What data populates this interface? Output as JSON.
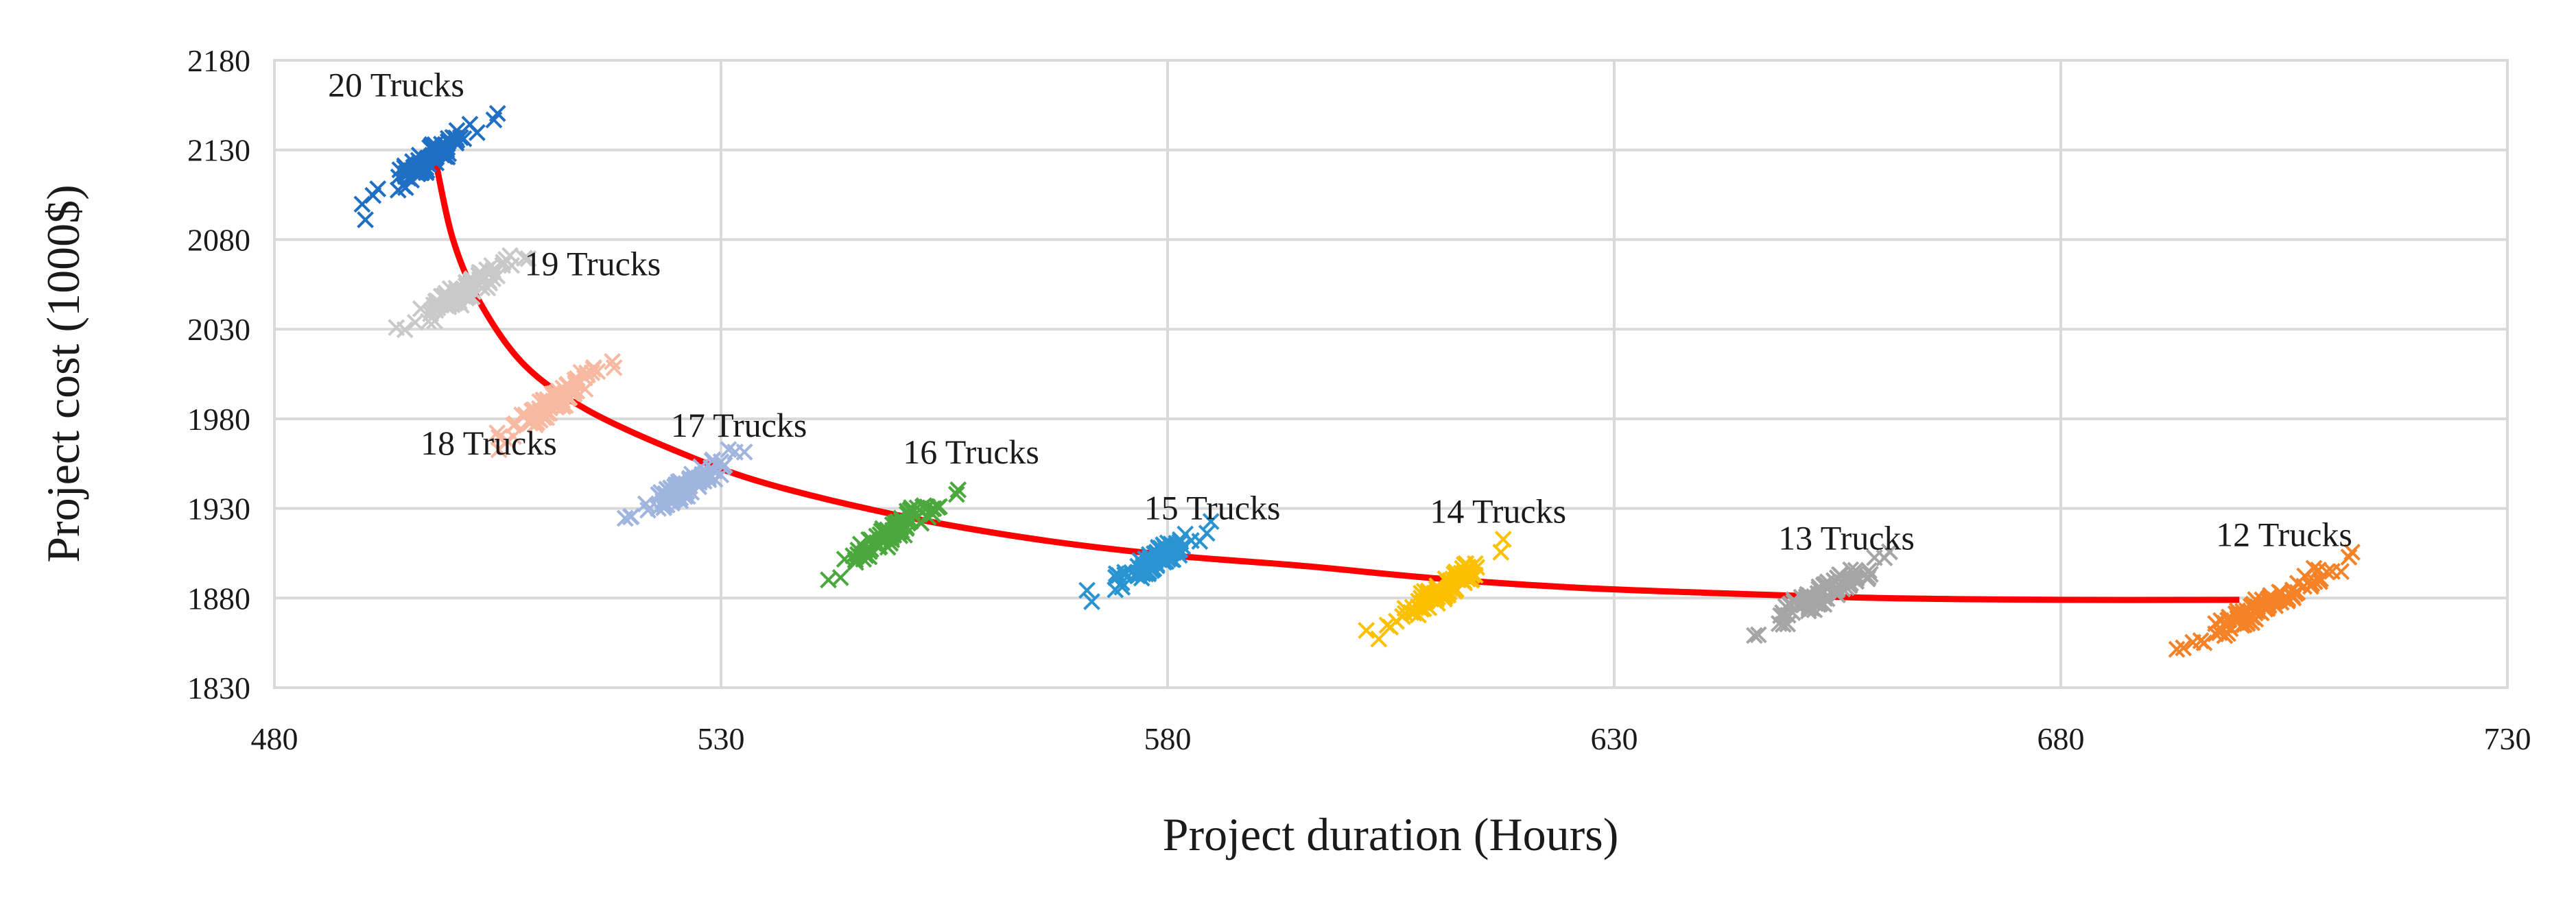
{
  "chart_data": {
    "type": "scatter",
    "title": "",
    "xlabel": "Project duration (Hours)",
    "ylabel": "Project cost (1000$)",
    "xlim": [
      480,
      730
    ],
    "ylim": [
      1830,
      2180
    ],
    "xticks": [
      480,
      530,
      580,
      630,
      680,
      730
    ],
    "yticks": [
      1830,
      1880,
      1930,
      1980,
      2030,
      2080,
      2130,
      2180
    ],
    "grid": true,
    "legend": "none",
    "marker": "x",
    "series": [
      {
        "name": "20 Trucks",
        "color": "#1f6fc5",
        "center": [
          497.5,
          2122
        ],
        "x_range": [
          489.5,
          504.5
        ],
        "y_range": [
          2095,
          2152
        ]
      },
      {
        "name": "19 Trucks",
        "color": "#c9c9c9",
        "center": [
          501,
          2050
        ],
        "x_range": [
          494,
          508
        ],
        "y_range": [
          2027,
          2073
        ]
      },
      {
        "name": "18 Trucks",
        "color": "#f8b9a2",
        "center": [
          511,
          1992
        ],
        "x_range": [
          504.5,
          518
        ],
        "y_range": [
          1966,
          2012
        ]
      },
      {
        "name": "17 Trucks",
        "color": "#9fb4df",
        "center": [
          526,
          1942
        ],
        "x_range": [
          519.5,
          532.5
        ],
        "y_range": [
          1921,
          1963
        ]
      },
      {
        "name": "16 Trucks",
        "color": "#4aa83c",
        "center": [
          549,
          1916
        ],
        "x_range": [
          542,
          556.5
        ],
        "y_range": [
          1893,
          1941
        ]
      },
      {
        "name": "15 Trucks",
        "color": "#2a93d1",
        "center": [
          578,
          1900
        ],
        "x_range": [
          571,
          585
        ],
        "y_range": [
          1880,
          1920
        ]
      },
      {
        "name": "14 Trucks",
        "color": "#fbc000",
        "center": [
          610,
          1884
        ],
        "x_range": [
          603,
          618
        ],
        "y_range": [
          1858,
          1909
        ]
      },
      {
        "name": "13 Trucks",
        "color": "#a5a5a5",
        "center": [
          651,
          1878
        ],
        "x_range": [
          645.5,
          661
        ],
        "y_range": [
          1860,
          1904
        ]
      },
      {
        "name": "12 Trucks",
        "color": "#f58226",
        "center": [
          703,
          1874
        ],
        "x_range": [
          693,
          713
        ],
        "y_range": [
          1849,
          1904
        ]
      }
    ],
    "labels": [
      {
        "text": "20 Trucks",
        "x": 486,
        "y": 2160,
        "anchor": "start"
      },
      {
        "text": "19 Trucks",
        "x": 508,
        "y": 2060,
        "anchor": "start"
      },
      {
        "text": "18 Trucks",
        "x": 504,
        "y": 1960,
        "anchor": "middle"
      },
      {
        "text": "17 Trucks",
        "x": 532,
        "y": 1970,
        "anchor": "middle"
      },
      {
        "text": "16 Trucks",
        "x": 558,
        "y": 1955,
        "anchor": "middle"
      },
      {
        "text": "15 Trucks",
        "x": 585,
        "y": 1924,
        "anchor": "middle"
      },
      {
        "text": "14 Trucks",
        "x": 617,
        "y": 1922,
        "anchor": "middle"
      },
      {
        "text": "13 Trucks",
        "x": 656,
        "y": 1907,
        "anchor": "middle"
      },
      {
        "text": "12 Trucks",
        "x": 705,
        "y": 1909,
        "anchor": "middle"
      }
    ],
    "pareto_curve": {
      "color": "#ff0000",
      "points": [
        [
          498,
          2125
        ],
        [
          500,
          2080
        ],
        [
          503,
          2045
        ],
        [
          508,
          2010
        ],
        [
          515,
          1985
        ],
        [
          525,
          1962
        ],
        [
          535,
          1944
        ],
        [
          550,
          1926
        ],
        [
          565,
          1913
        ],
        [
          580,
          1904
        ],
        [
          595,
          1898
        ],
        [
          610,
          1891
        ],
        [
          625,
          1886
        ],
        [
          640,
          1883
        ],
        [
          660,
          1880
        ],
        [
          680,
          1879
        ],
        [
          700,
          1879
        ]
      ]
    }
  }
}
